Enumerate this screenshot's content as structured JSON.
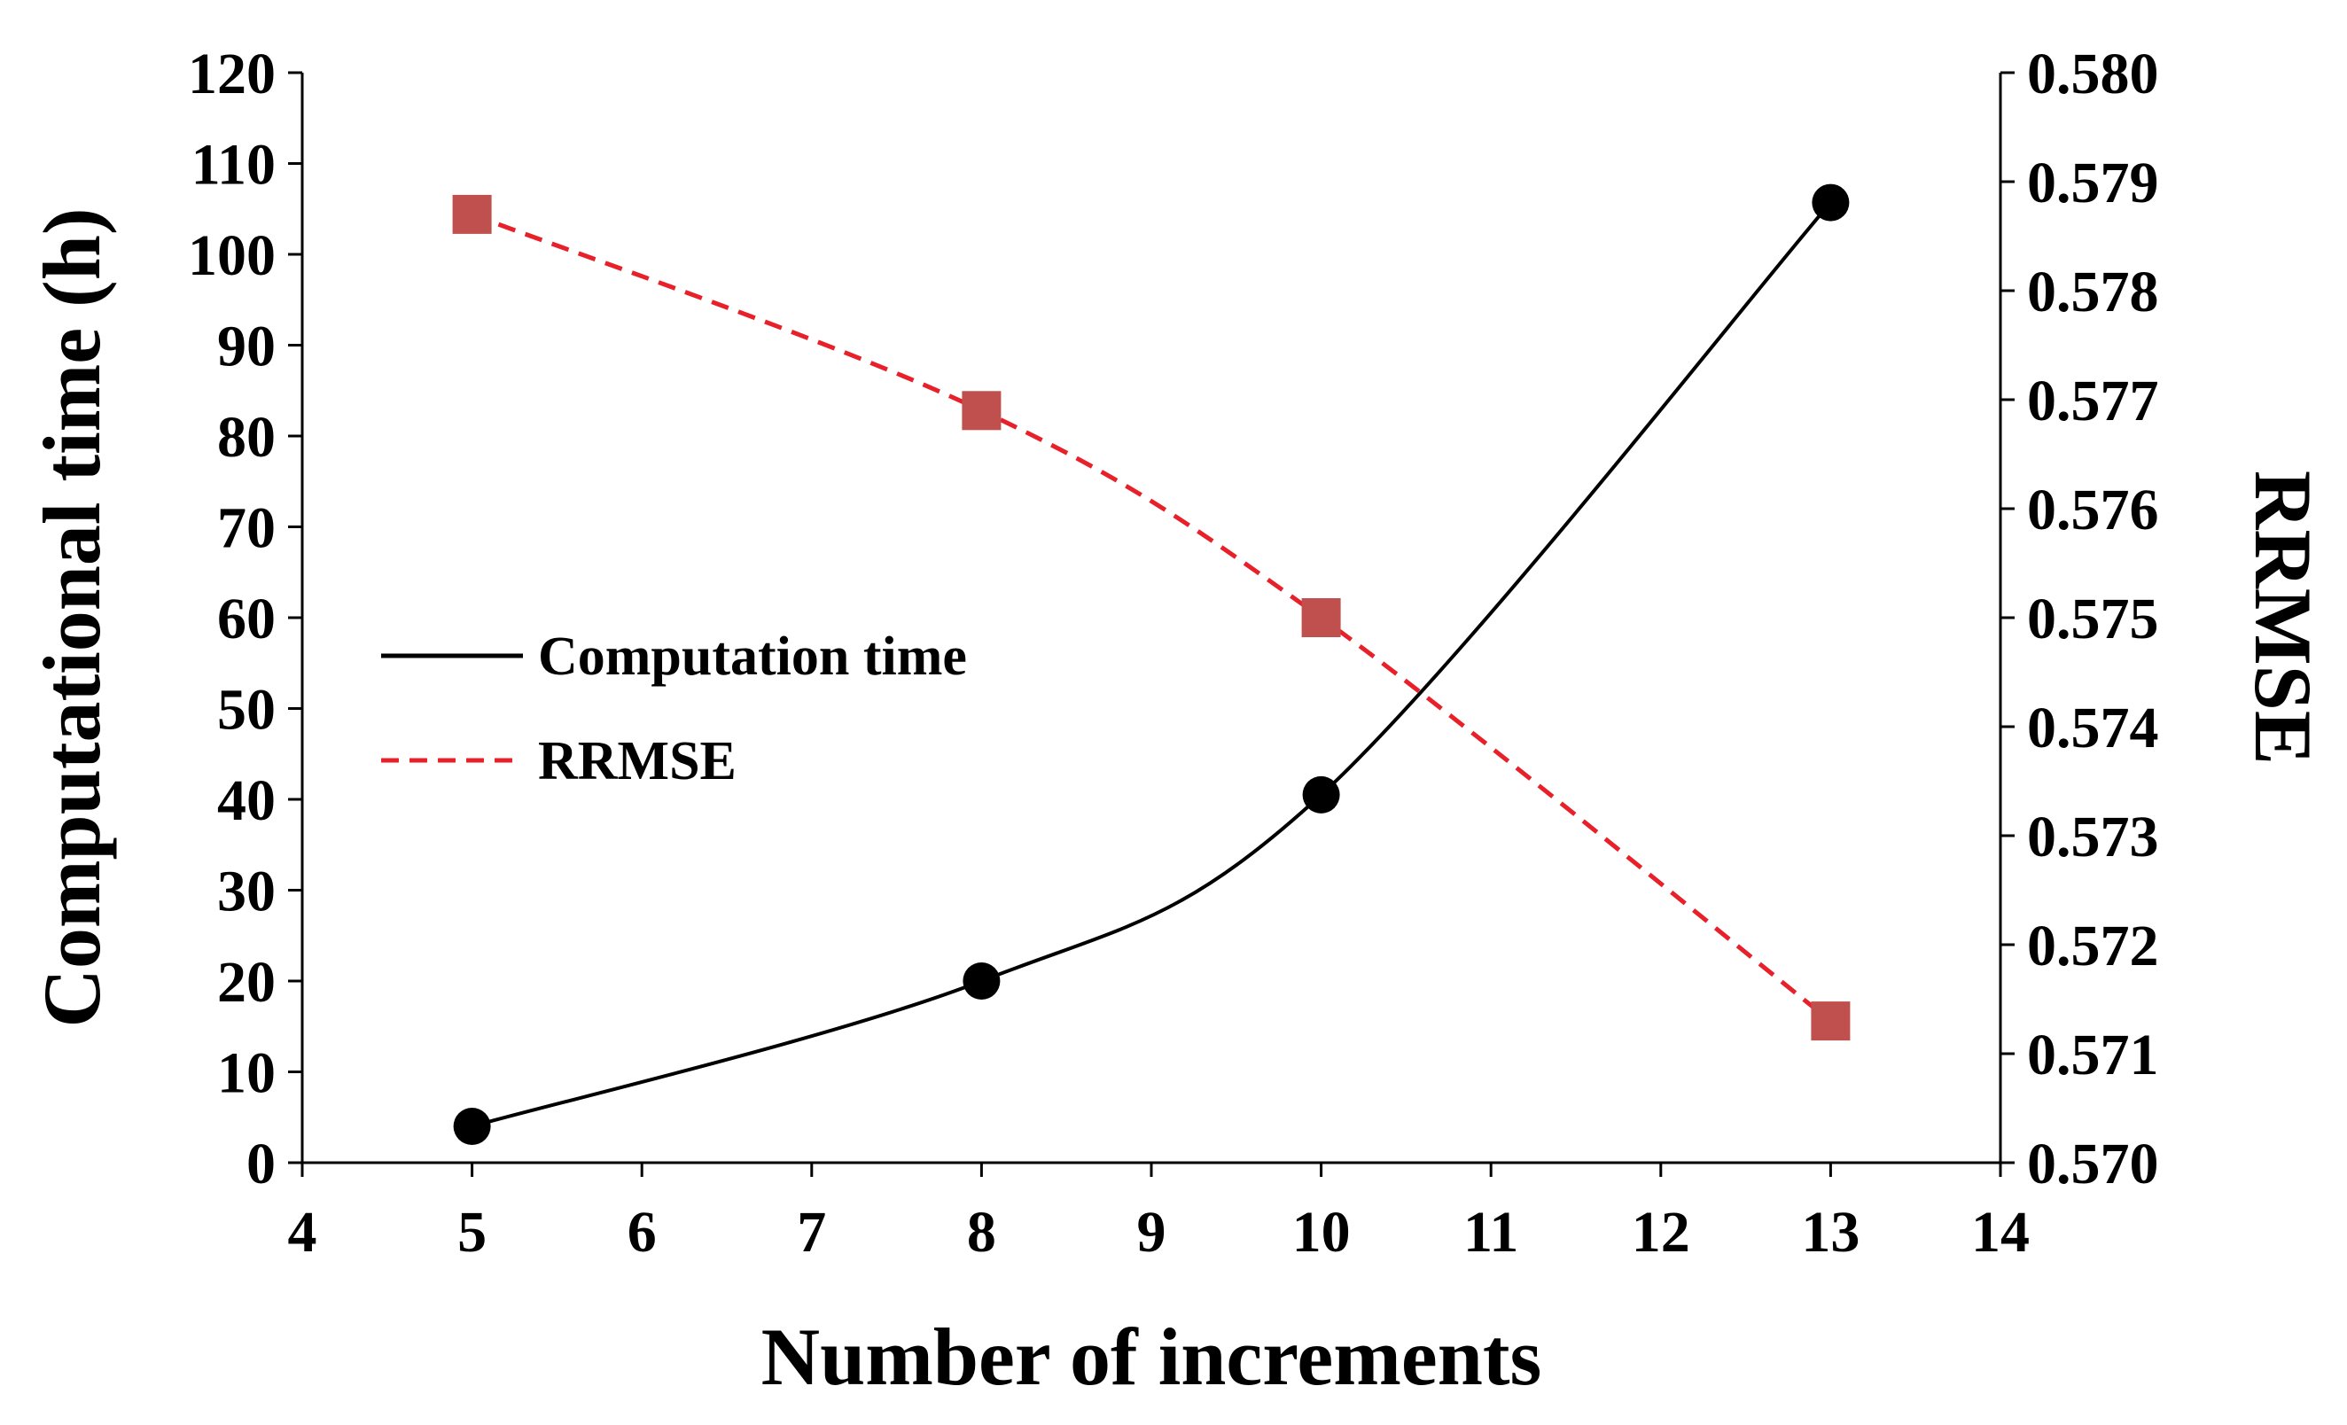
{
  "chart_data": {
    "type": "line",
    "title": "",
    "xlabel": "Number of increments",
    "ylabel": "Computational time (h)",
    "y2label": "RRMSE",
    "xlim": [
      4,
      14
    ],
    "ylim": [
      0,
      120
    ],
    "y2lim": [
      0.57,
      0.58
    ],
    "x_ticks": [
      "4",
      "5",
      "6",
      "7",
      "8",
      "9",
      "10",
      "11",
      "12",
      "13",
      "14"
    ],
    "y_ticks": [
      "0",
      "10",
      "20",
      "30",
      "40",
      "50",
      "60",
      "70",
      "80",
      "90",
      "100",
      "110",
      "120"
    ],
    "y2_ticks": [
      "0.570",
      "0.571",
      "0.572",
      "0.573",
      "0.574",
      "0.575",
      "0.576",
      "0.577",
      "0.578",
      "0.579",
      "0.580"
    ],
    "legend_position": "middle-left",
    "grid": false,
    "series": [
      {
        "name": "Computation time",
        "axis": "left",
        "x": [
          5,
          8,
          10,
          13
        ],
        "values": [
          4,
          20,
          40.5,
          105.7
        ],
        "color": "#000000",
        "line_style": "solid",
        "marker": "circle",
        "marker_color": "#000000"
      },
      {
        "name": "RRMSE",
        "axis": "right",
        "x": [
          5,
          8,
          10,
          13
        ],
        "values": [
          0.5787,
          0.5769,
          0.575,
          0.5713
        ],
        "color": "#e8202a",
        "line_style": "dashed",
        "marker": "square",
        "marker_color": "#c0504d"
      }
    ]
  }
}
